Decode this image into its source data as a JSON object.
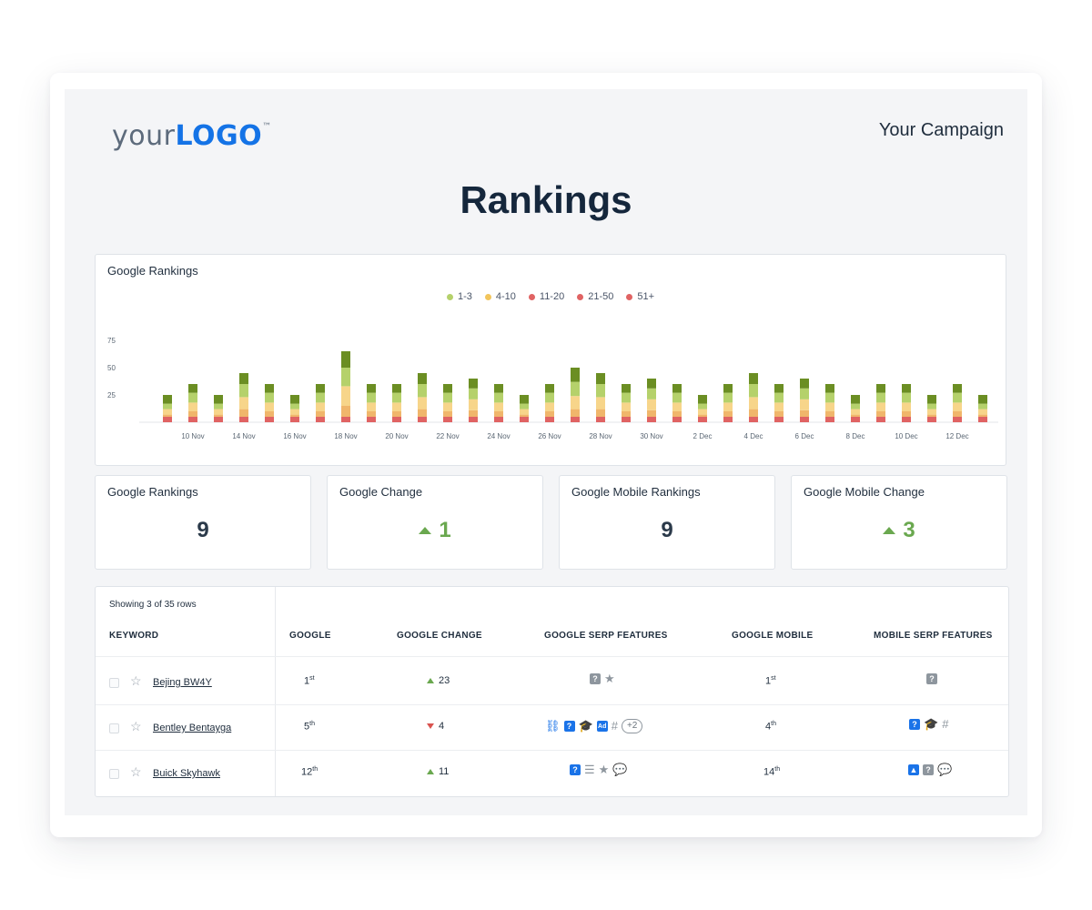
{
  "header": {
    "logo_your": "your",
    "logo_brand": "LOGO",
    "logo_tm": "™",
    "campaign": "Your Campaign",
    "title": "Rankings"
  },
  "chart_panel": {
    "title": "Google Rankings"
  },
  "colors": {
    "c13": "#6b8e23",
    "c410": "#b5d16b",
    "c1120": "#f7d58a",
    "c2150": "#f0b66b",
    "c51": "#e06363",
    "up": "#6aa84f",
    "down": "#d9534f",
    "accent": "#1473e6"
  },
  "chart_data": {
    "type": "bar",
    "stacked": true,
    "legend": [
      "1-3",
      "4-10",
      "11-20",
      "21-50",
      "51+"
    ],
    "legend_position": "top-center",
    "y_ticks": [
      "75",
      "50",
      "25"
    ],
    "ylim": [
      0,
      75
    ],
    "x_tick_labels": [
      "10 Nov",
      "14 Nov",
      "16 Nov",
      "18 Nov",
      "20 Nov",
      "22 Nov",
      "24 Nov",
      "26 Nov",
      "28 Nov",
      "30 Nov",
      "2 Dec",
      "4 Dec",
      "6 Dec",
      "8 Dec",
      "10 Dec",
      "12 Dec"
    ],
    "totals": [
      25,
      35,
      25,
      45,
      35,
      25,
      35,
      65,
      35,
      35,
      45,
      35,
      40,
      35,
      25,
      35,
      50,
      45,
      35,
      40,
      35,
      25,
      35,
      45,
      35,
      40,
      35,
      25,
      35,
      35,
      25,
      35,
      25
    ],
    "series": [
      {
        "name": "1-3",
        "values": [
          8,
          8,
          8,
          10,
          8,
          8,
          8,
          15,
          8,
          8,
          10,
          8,
          9,
          8,
          8,
          8,
          13,
          10,
          8,
          9,
          8,
          8,
          8,
          10,
          8,
          9,
          8,
          8,
          8,
          8,
          8,
          8,
          8
        ]
      },
      {
        "name": "4-10",
        "values": [
          5,
          9,
          5,
          12,
          9,
          5,
          9,
          17,
          9,
          9,
          12,
          9,
          10,
          9,
          5,
          9,
          13,
          12,
          9,
          10,
          9,
          5,
          9,
          12,
          9,
          10,
          9,
          5,
          9,
          9,
          5,
          9,
          5
        ]
      },
      {
        "name": "11-20",
        "values": [
          5,
          8,
          5,
          11,
          8,
          5,
          8,
          18,
          8,
          8,
          11,
          8,
          10,
          8,
          5,
          8,
          12,
          11,
          8,
          10,
          8,
          5,
          8,
          11,
          8,
          10,
          8,
          5,
          8,
          8,
          5,
          8,
          5
        ]
      },
      {
        "name": "21-50",
        "values": [
          2,
          5,
          2,
          7,
          5,
          2,
          5,
          10,
          5,
          5,
          7,
          5,
          6,
          5,
          2,
          5,
          7,
          7,
          5,
          6,
          5,
          2,
          5,
          7,
          5,
          6,
          5,
          2,
          5,
          5,
          2,
          5,
          2
        ]
      },
      {
        "name": "51+",
        "values": [
          5,
          5,
          5,
          5,
          5,
          5,
          5,
          5,
          5,
          5,
          5,
          5,
          5,
          5,
          5,
          5,
          5,
          5,
          5,
          5,
          5,
          5,
          5,
          5,
          5,
          5,
          5,
          5,
          5,
          5,
          5,
          5,
          5
        ]
      }
    ]
  },
  "stats": [
    {
      "label": "Google Rankings",
      "value": "9",
      "trend": "none"
    },
    {
      "label": "Google Change",
      "value": "1",
      "trend": "up"
    },
    {
      "label": "Google Mobile Rankings",
      "value": "9",
      "trend": "none"
    },
    {
      "label": "Google Mobile Change",
      "value": "3",
      "trend": "up"
    }
  ],
  "table": {
    "showing": "Showing 3 of 35 rows",
    "headers": {
      "keyword": "KEYWORD",
      "google": "GOOGLE",
      "change": "GOOGLE CHANGE",
      "serp": "GOOGLE SERP FEATURES",
      "mobile": "GOOGLE MOBILE",
      "mobile_serp": "MOBILE SERP FEATURES"
    },
    "rows": [
      {
        "keyword": "Bejing BW4Y",
        "google": "1",
        "google_sup": "st",
        "change": "23",
        "change_dir": "up",
        "mobile": "1",
        "mobile_sup": "st"
      },
      {
        "keyword": "Bentley Bentayga",
        "google": "5",
        "google_sup": "th",
        "change": "4",
        "change_dir": "down",
        "mobile": "4",
        "mobile_sup": "th",
        "serp_more": "+2"
      },
      {
        "keyword": "Buick Skyhawk",
        "google": "12",
        "google_sup": "th",
        "change": "11",
        "change_dir": "up",
        "mobile": "14",
        "mobile_sup": "th"
      }
    ]
  }
}
